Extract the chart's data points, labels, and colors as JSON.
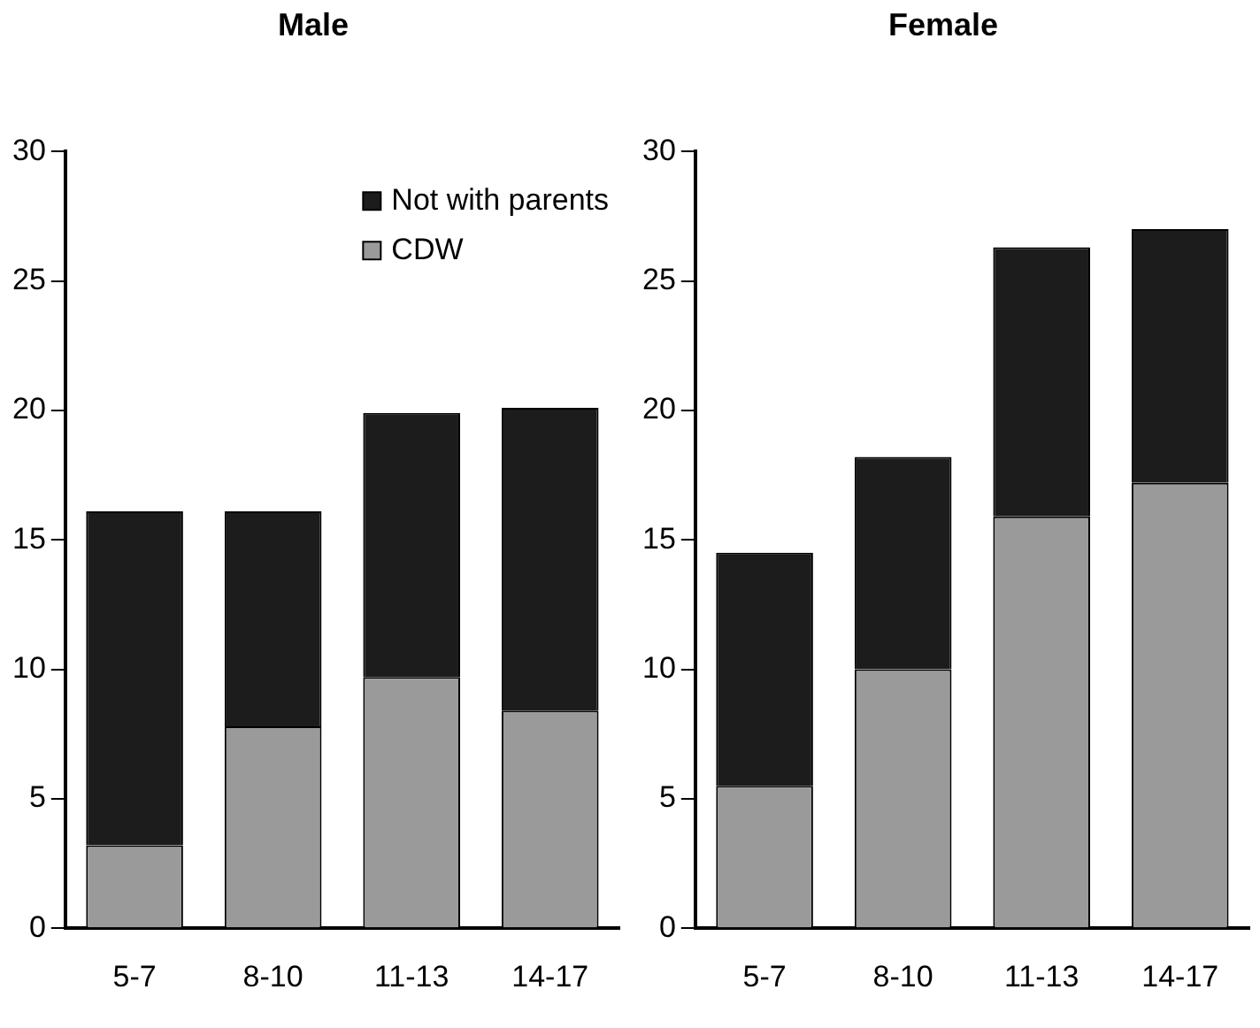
{
  "chart_data": [
    {
      "type": "bar",
      "title": "Male",
      "stacked": true,
      "categories": [
        "5-7",
        "8-10",
        "11-13",
        "14-17"
      ],
      "ylim": [
        0,
        30
      ],
      "yticks": [
        0,
        5,
        10,
        15,
        20,
        25,
        30
      ],
      "grid": false,
      "legend": "top right",
      "series": [
        {
          "name": "CDW",
          "color": "#9a9a9a",
          "values": [
            3.2,
            7.8,
            9.7,
            8.4
          ]
        },
        {
          "name": "Not with parents",
          "color": "#1c1c1c",
          "values": [
            12.9,
            8.3,
            10.2,
            11.7
          ]
        }
      ]
    },
    {
      "type": "bar",
      "title": "Female",
      "stacked": true,
      "categories": [
        "5-7",
        "8-10",
        "11-13",
        "14-17"
      ],
      "ylim": [
        0,
        30
      ],
      "yticks": [
        0,
        5,
        10,
        15,
        20,
        25,
        30
      ],
      "grid": false,
      "legend": false,
      "series": [
        {
          "color": "#9a9a9a",
          "values": [
            5.5,
            10.0,
            15.9,
            17.2
          ]
        },
        {
          "color": "#1c1c1c",
          "values": [
            9.0,
            8.2,
            10.4,
            9.8
          ]
        }
      ]
    }
  ]
}
